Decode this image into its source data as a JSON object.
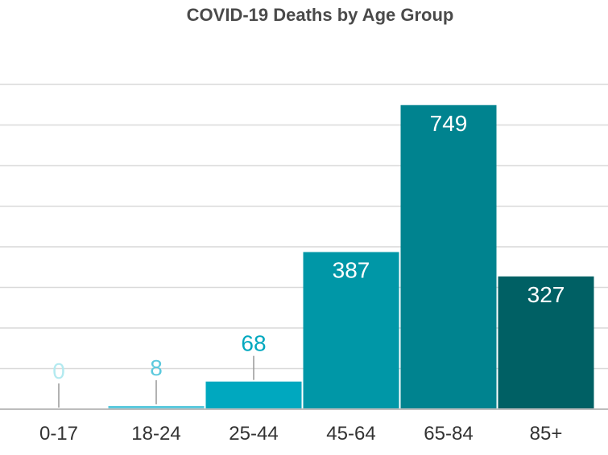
{
  "chart_data": {
    "type": "bar",
    "title": "COVID-19 Deaths by Age Group",
    "categories": [
      "0-17",
      "18-24",
      "25-44",
      "45-64",
      "65-84",
      "85+"
    ],
    "values": [
      0,
      8,
      68,
      387,
      749,
      327
    ],
    "ylim": [
      0,
      800
    ],
    "grid": true,
    "colors": [
      "#b3eaf0",
      "#5cc9dd",
      "#00a8bf",
      "#0097a7",
      "#00838f",
      "#006064"
    ],
    "label_colors": [
      "#b3eaf0",
      "#5cc9dd",
      "#00a8bf",
      "#ffffff",
      "#ffffff",
      "#ffffff"
    ]
  }
}
